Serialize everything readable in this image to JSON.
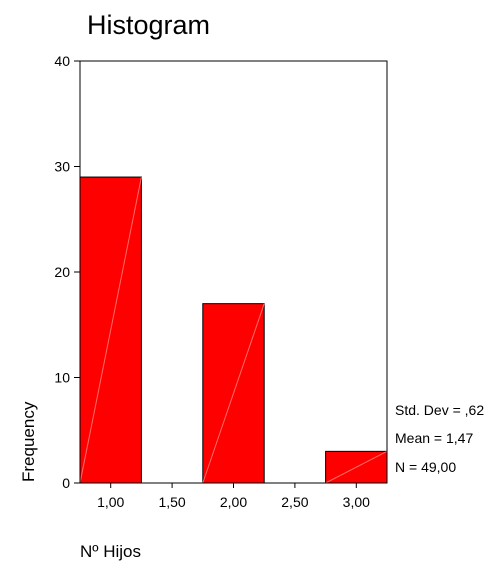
{
  "chart_data": {
    "type": "bar",
    "title": "Histogram",
    "xlabel": "Nº Hijos",
    "ylabel": "Frequency",
    "x_tick_labels": [
      "1,00",
      "1,50",
      "2,00",
      "2,50",
      "3,00"
    ],
    "y_tick_labels": [
      "0",
      "10",
      "20",
      "30",
      "40"
    ],
    "ylim": [
      0,
      40
    ],
    "categories": [
      "1,00",
      "2,00",
      "3,00"
    ],
    "values": [
      29,
      17,
      3
    ],
    "bar_color": "#ff0000",
    "bar_outline_color": "#000000",
    "grid": false,
    "legend": "none",
    "stats": {
      "std_dev": "Std. Dev = ,62",
      "mean": "Mean = 1,47",
      "n": "N = 49,00"
    }
  }
}
